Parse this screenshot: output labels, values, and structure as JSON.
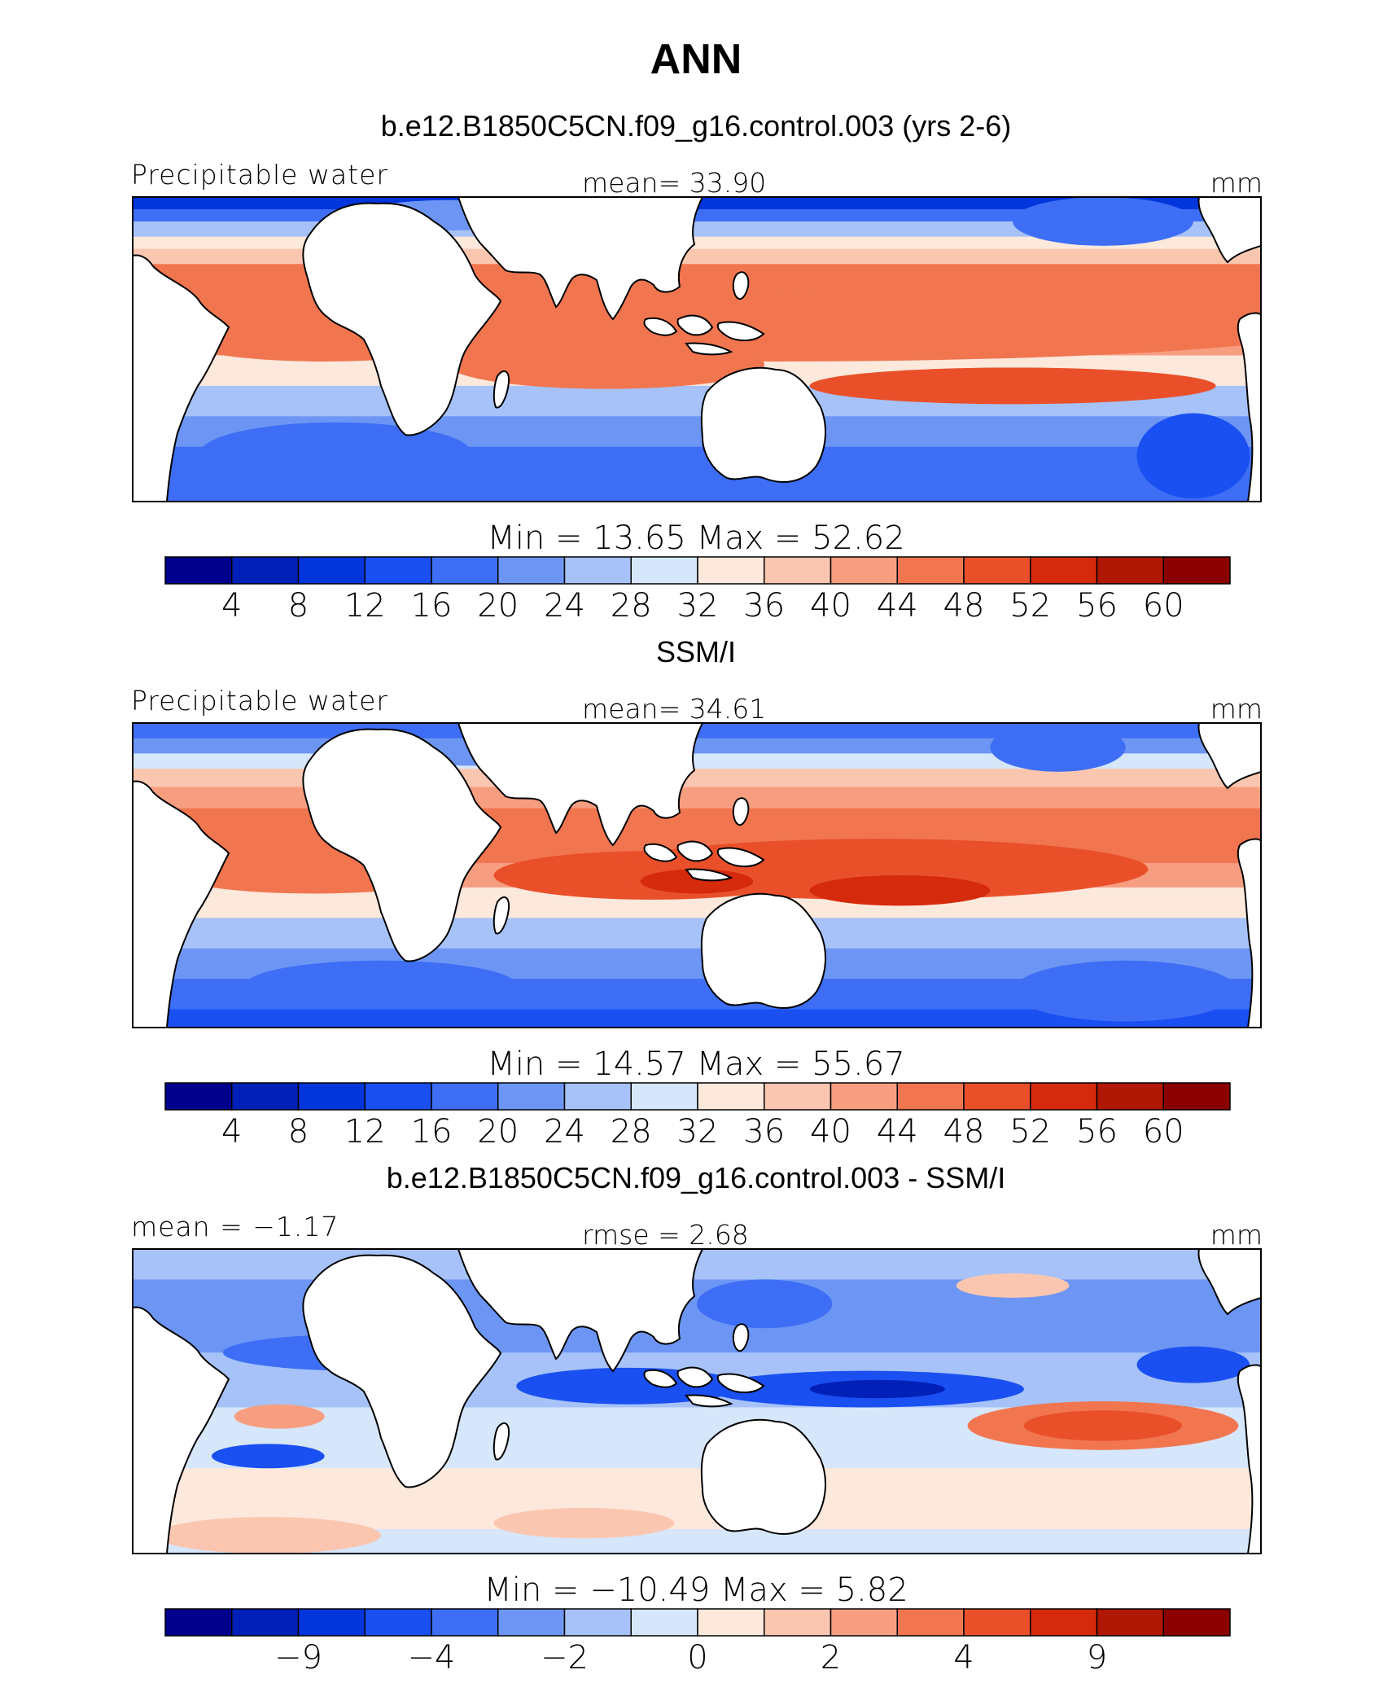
{
  "title": "ANN",
  "panels": [
    {
      "heading": "b.e12.B1850C5CN.f09_g16.control.003 (yrs 2-6)",
      "left_label": "Precipitable water",
      "center_label": "mean=   33.90",
      "right_label": "mm",
      "minmax_label": "Min  =    13.65  Max  =    52.62",
      "colorbar": {
        "colors": [
          "#00008c",
          "#0020b8",
          "#0036dc",
          "#1a4ff2",
          "#3d6ef5",
          "#6d96f4",
          "#a6c2f8",
          "#d6e6fb",
          "#fde8dc",
          "#fbc6b0",
          "#f79e80",
          "#f17650",
          "#e9502a",
          "#d62a0c",
          "#b01805",
          "#8a0000"
        ],
        "tick_labels": [
          "4",
          "8",
          "12",
          "16",
          "20",
          "24",
          "28",
          "32",
          "36",
          "40",
          "44",
          "48",
          "52",
          "56",
          "60"
        ]
      }
    },
    {
      "heading": "SSM/I",
      "left_label": "Precipitable water",
      "center_label": "mean=   34.61",
      "right_label": "mm",
      "minmax_label": "Min  =    14.57  Max  =    55.67",
      "colorbar": {
        "colors": [
          "#00008c",
          "#0020b8",
          "#0036dc",
          "#1a4ff2",
          "#3d6ef5",
          "#6d96f4",
          "#a6c2f8",
          "#d6e6fb",
          "#fde8dc",
          "#fbc6b0",
          "#f79e80",
          "#f17650",
          "#e9502a",
          "#d62a0c",
          "#b01805",
          "#8a0000"
        ],
        "tick_labels": [
          "4",
          "8",
          "12",
          "16",
          "20",
          "24",
          "28",
          "32",
          "36",
          "40",
          "44",
          "48",
          "52",
          "56",
          "60"
        ]
      }
    },
    {
      "heading": "b.e12.B1850C5CN.f09_g16.control.003 - SSM/I",
      "left_label": "mean =   −1.17",
      "center_label": "rmse =     2.68",
      "right_label": "mm",
      "minmax_label": "Min  =  −10.49  Max  =     5.82",
      "colorbar": {
        "colors": [
          "#00008c",
          "#0020b8",
          "#0036dc",
          "#1a4ff2",
          "#3d6ef5",
          "#6d96f4",
          "#a6c2f8",
          "#d6e6fb",
          "#fde8dc",
          "#fbc6b0",
          "#f79e80",
          "#f17650",
          "#e9502a",
          "#d62a0c",
          "#b01805",
          "#8a0000"
        ],
        "tick_labels": [
          "",
          "−9",
          "",
          "−4",
          "",
          "−2",
          "",
          "0",
          "",
          "2",
          "",
          "4",
          "",
          "9",
          ""
        ]
      }
    }
  ]
}
